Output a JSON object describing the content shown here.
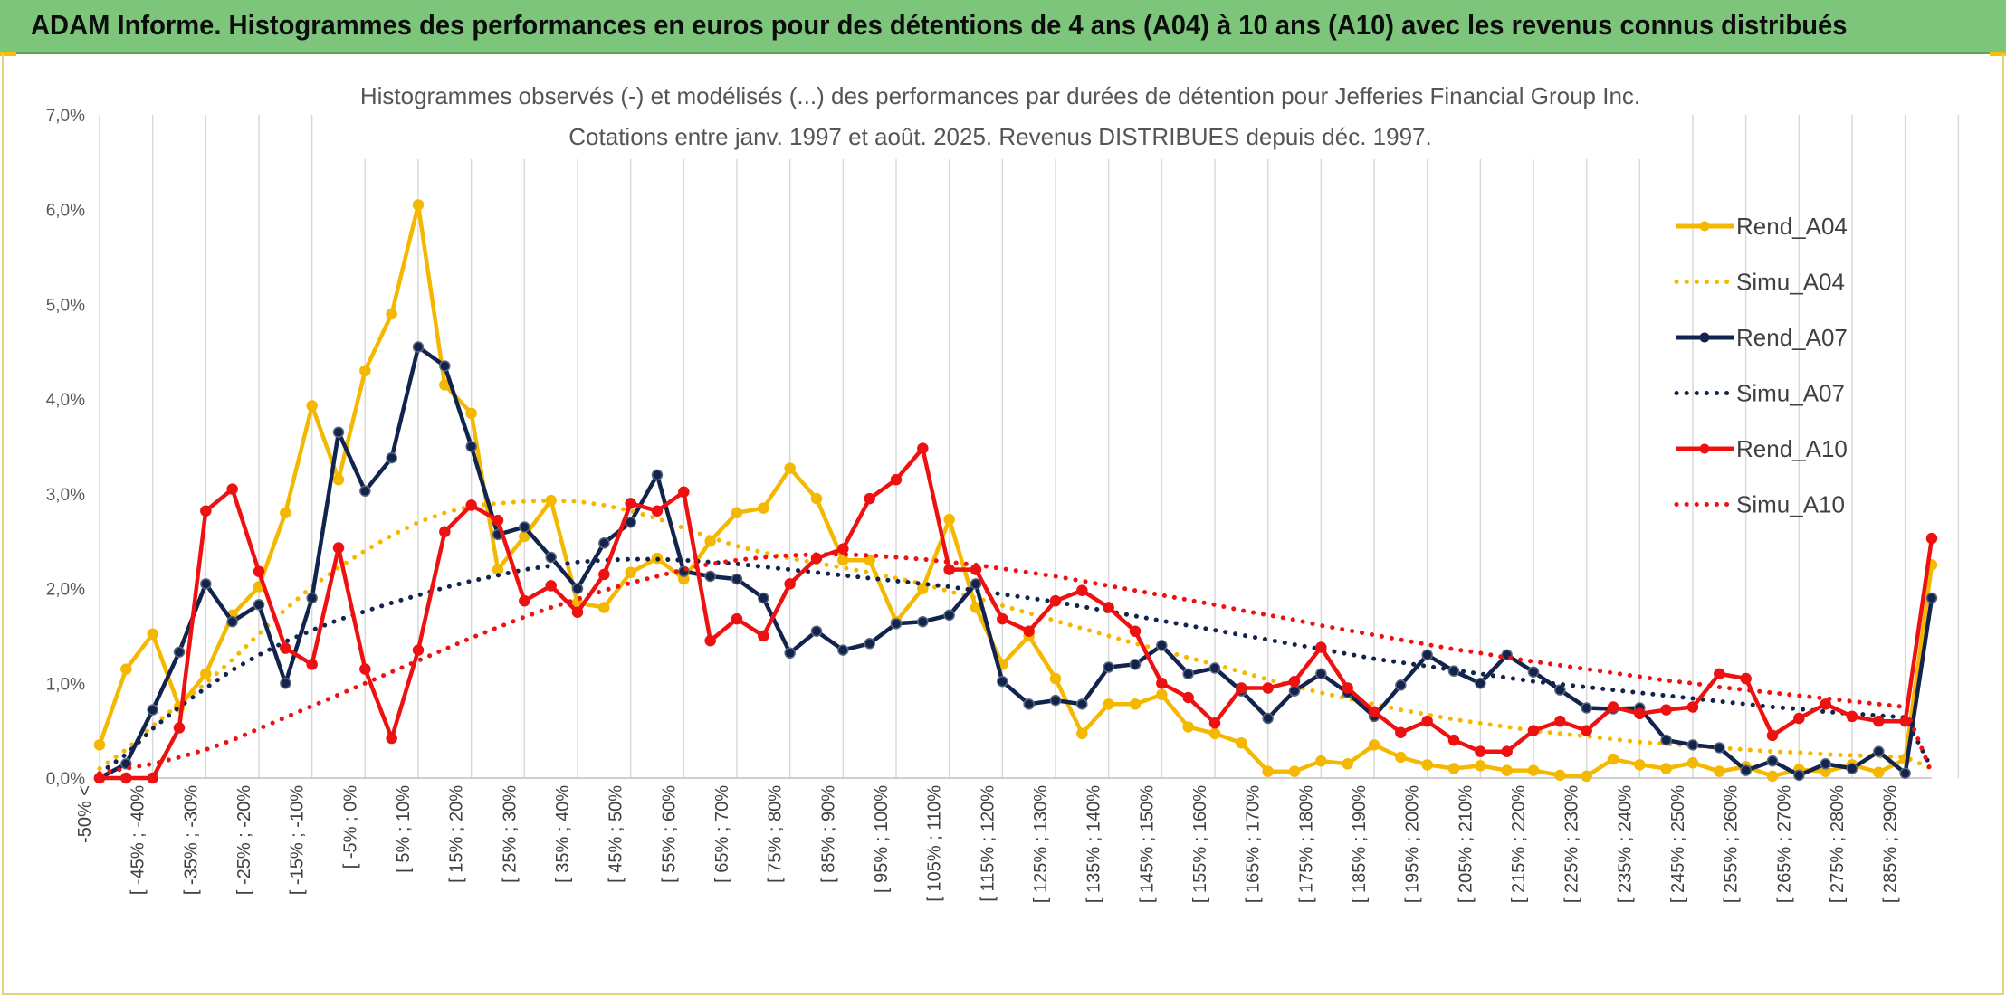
{
  "banner": {
    "title": "ADAM Informe. Histogrammes des performances en euros pour des détentions de 4 ans (A04) à 10 ans (A10) avec les revenus connus distribués"
  },
  "chart_data": {
    "type": "line",
    "title": "Histogrammes observés (-) et modélisés (...) des performances par durées de détention pour Jefferies Financial Group Inc.",
    "subtitle": "Cotations entre janv. 1997 et août. 2025. Revenus DISTRIBUES depuis déc. 1997.",
    "xlabel": "",
    "ylabel": "",
    "ylim": [
      0,
      7.0
    ],
    "y_ticks": [
      "0,0%",
      "1,0%",
      "2,0%",
      "3,0%",
      "4,0%",
      "5,0%",
      "6,0%",
      "7,0%"
    ],
    "grid": "vertical",
    "legend_position": "right",
    "x_tick_labels": [
      "-50% <",
      "[ -45% ; -40%",
      "[ -35% ; -30%",
      "[ -25% ; -20%",
      "[ -15% ; -10%",
      "[ -5% ; 0%",
      "[ 5% ; 10%",
      "[ 15% ; 20%",
      "[ 25% ; 30%",
      "[ 35% ; 40%",
      "[ 45% ; 50%",
      "[ 55% ; 60%",
      "[ 65% ; 70%",
      "[ 75% ; 80%",
      "[ 85% ; 90%",
      "[ 95% ; 100%",
      "[ 105% ; 110%",
      "[ 115% ; 120%",
      "[ 125% ; 130%",
      "[ 135% ; 140%",
      "[ 145% ; 150%",
      "[ 155% ; 160%",
      "[ 165% ; 170%",
      "[ 175% ; 180%",
      "[ 185% ; 190%",
      "[ 195% ; 200%",
      "[ 205% ; 210%",
      "[ 215% ; 220%",
      "[ 225% ; 230%",
      "[ 235% ; 240%",
      "[ 245% ; 250%",
      "[ 255% ; 260%",
      "[ 265% ; 270%",
      "[ 275% ; 280%",
      "[ 285% ; 290%"
    ],
    "series": [
      {
        "name": "Rend_A04",
        "style": "solid",
        "color": "#f5b800",
        "values": [
          0.35,
          1.15,
          1.52,
          0.75,
          1.1,
          1.72,
          2.02,
          2.8,
          3.93,
          3.15,
          4.3,
          4.9,
          6.05,
          4.15,
          3.85,
          2.2,
          2.55,
          2.93,
          1.85,
          1.8,
          2.17,
          2.32,
          2.1,
          2.5,
          2.8,
          2.85,
          3.27,
          2.95,
          2.3,
          2.3,
          1.65,
          2.0,
          2.73,
          1.8,
          1.2,
          1.5,
          1.05,
          0.47,
          0.78,
          0.78,
          0.88,
          0.54,
          0.47,
          0.37,
          0.07,
          0.07,
          0.18,
          0.15,
          0.35,
          0.22,
          0.14,
          0.1,
          0.13,
          0.08,
          0.08,
          0.03,
          0.02,
          0.2,
          0.14,
          0.1,
          0.16,
          0.07,
          0.12,
          0.02,
          0.09,
          0.07,
          0.14,
          0.06,
          0.2,
          2.25
        ]
      },
      {
        "name": "Simu_A04",
        "style": "dotted",
        "color": "#f5b800",
        "values": [
          0.1,
          0.3,
          0.55,
          0.78,
          1.0,
          1.25,
          1.52,
          1.78,
          2.02,
          2.22,
          2.4,
          2.56,
          2.7,
          2.8,
          2.87,
          2.9,
          2.92,
          2.93,
          2.92,
          2.88,
          2.82,
          2.74,
          2.64,
          2.54,
          2.45,
          2.38,
          2.32,
          2.27,
          2.22,
          2.17,
          2.11,
          2.05,
          1.97,
          1.9,
          1.82,
          1.74,
          1.66,
          1.58,
          1.5,
          1.42,
          1.35,
          1.27,
          1.2,
          1.12,
          1.04,
          0.97,
          0.9,
          0.84,
          0.78,
          0.72,
          0.67,
          0.62,
          0.58,
          0.54,
          0.5,
          0.47,
          0.44,
          0.41,
          0.38,
          0.36,
          0.34,
          0.32,
          0.3,
          0.28,
          0.27,
          0.25,
          0.24,
          0.23,
          0.22,
          0.1
        ]
      },
      {
        "name": "Rend_A07",
        "style": "solid",
        "color": "#12244e",
        "values": [
          0.0,
          0.15,
          0.72,
          1.33,
          2.05,
          1.65,
          1.83,
          1.0,
          1.9,
          3.65,
          3.03,
          3.38,
          4.55,
          4.35,
          3.5,
          2.57,
          2.65,
          2.33,
          2.0,
          2.48,
          2.7,
          3.2,
          2.18,
          2.13,
          2.1,
          1.9,
          1.32,
          1.55,
          1.35,
          1.42,
          1.63,
          1.65,
          1.72,
          2.05,
          1.02,
          0.78,
          0.82,
          0.78,
          1.17,
          1.2,
          1.4,
          1.1,
          1.16,
          0.92,
          0.63,
          0.92,
          1.1,
          0.9,
          0.65,
          0.98,
          1.3,
          1.13,
          1.0,
          1.3,
          1.12,
          0.93,
          0.74,
          0.73,
          0.74,
          0.4,
          0.35,
          0.32,
          0.08,
          0.18,
          0.03,
          0.15,
          0.1,
          0.28,
          0.05,
          1.9
        ]
      },
      {
        "name": "Simu_A07",
        "style": "dotted",
        "color": "#12244e",
        "values": [
          0.05,
          0.25,
          0.52,
          0.75,
          0.95,
          1.14,
          1.3,
          1.44,
          1.56,
          1.67,
          1.76,
          1.85,
          1.93,
          2.01,
          2.08,
          2.14,
          2.2,
          2.24,
          2.28,
          2.3,
          2.31,
          2.31,
          2.3,
          2.28,
          2.26,
          2.23,
          2.2,
          2.17,
          2.14,
          2.11,
          2.08,
          2.05,
          2.02,
          1.98,
          1.94,
          1.9,
          1.86,
          1.81,
          1.76,
          1.71,
          1.66,
          1.61,
          1.56,
          1.51,
          1.46,
          1.41,
          1.36,
          1.31,
          1.26,
          1.22,
          1.18,
          1.14,
          1.1,
          1.06,
          1.02,
          0.99,
          0.96,
          0.93,
          0.9,
          0.87,
          0.84,
          0.81,
          0.78,
          0.75,
          0.73,
          0.7,
          0.68,
          0.66,
          0.64,
          0.1
        ]
      },
      {
        "name": "Rend_A10",
        "style": "solid",
        "color": "#ee1111",
        "values": [
          0.0,
          0.0,
          0.0,
          0.53,
          2.82,
          3.05,
          2.18,
          1.37,
          1.2,
          2.43,
          1.15,
          0.42,
          1.35,
          2.6,
          2.88,
          2.72,
          1.87,
          2.03,
          1.75,
          2.15,
          2.9,
          2.82,
          3.02,
          1.45,
          1.68,
          1.5,
          2.05,
          2.32,
          2.42,
          2.95,
          3.15,
          3.48,
          2.2,
          2.2,
          1.68,
          1.55,
          1.87,
          1.98,
          1.8,
          1.55,
          1.0,
          0.85,
          0.58,
          0.95,
          0.95,
          1.02,
          1.38,
          0.95,
          0.7,
          0.48,
          0.6,
          0.4,
          0.28,
          0.28,
          0.5,
          0.6,
          0.5,
          0.75,
          0.68,
          0.72,
          0.75,
          1.1,
          1.05,
          0.45,
          0.63,
          0.78,
          0.65,
          0.6,
          0.6,
          2.53
        ]
      },
      {
        "name": "Simu_A10",
        "style": "dotted",
        "color": "#ee1111",
        "values": [
          0.05,
          0.1,
          0.15,
          0.22,
          0.3,
          0.4,
          0.52,
          0.64,
          0.76,
          0.88,
          1.0,
          1.12,
          1.24,
          1.36,
          1.48,
          1.59,
          1.7,
          1.8,
          1.89,
          1.98,
          2.06,
          2.13,
          2.2,
          2.26,
          2.3,
          2.33,
          2.35,
          2.36,
          2.36,
          2.35,
          2.33,
          2.31,
          2.28,
          2.25,
          2.21,
          2.17,
          2.13,
          2.08,
          2.03,
          1.98,
          1.93,
          1.88,
          1.83,
          1.77,
          1.72,
          1.67,
          1.61,
          1.56,
          1.51,
          1.46,
          1.41,
          1.36,
          1.32,
          1.27,
          1.23,
          1.19,
          1.15,
          1.11,
          1.07,
          1.03,
          1.0,
          0.96,
          0.93,
          0.9,
          0.87,
          0.84,
          0.81,
          0.78,
          0.75,
          0.05
        ]
      }
    ]
  }
}
